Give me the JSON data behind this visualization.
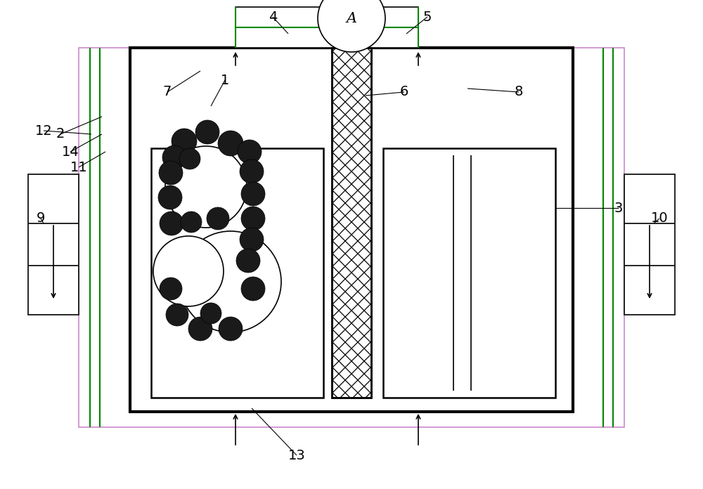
{
  "bg_color": "#ffffff",
  "line_color": "#000000",
  "gray_line_color": "#bbbbbb",
  "green_color": "#008800",
  "light_purple": "#cc88cc",
  "fig_width": 10.0,
  "fig_height": 6.96,
  "dpi": 100
}
